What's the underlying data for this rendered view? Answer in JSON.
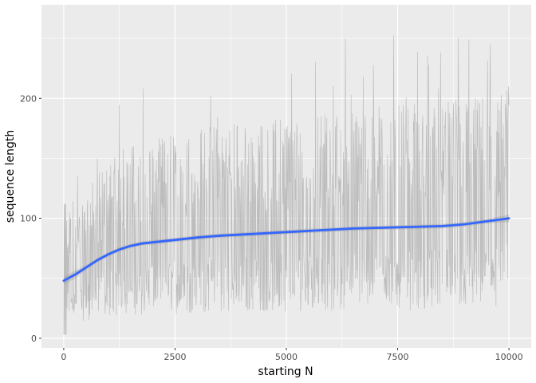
{
  "chart_data": {
    "type": "line",
    "title": "",
    "xlabel": "starting N",
    "ylabel": "sequence length",
    "xlim": [
      -500,
      10500
    ],
    "ylim": [
      -8,
      278
    ],
    "x_ticks": [
      0,
      2500,
      5000,
      7500,
      10000
    ],
    "x_tick_labels": [
      "0",
      "2500",
      "5000",
      "7500",
      "10000"
    ],
    "y_ticks": [
      0,
      100,
      200
    ],
    "y_tick_labels": [
      "0",
      "100",
      "200"
    ],
    "grid": true,
    "legend": "none",
    "series": [
      {
        "kind": "raw",
        "color": "#bdbdbd",
        "x_range": [
          1,
          10000
        ],
        "y_range": [
          1,
          262
        ],
        "note_values": "dense per-N sequence lengths; lower envelope ~20-60, upper envelope ~110-260"
      },
      {
        "kind": "smooth",
        "color": "#3366ff",
        "band_color": "#999999",
        "x": [
          0,
          250,
          500,
          750,
          1000,
          1250,
          1500,
          1750,
          2000,
          2500,
          3000,
          3500,
          4000,
          4500,
          5000,
          5500,
          6000,
          6500,
          7000,
          7500,
          8000,
          8500,
          9000,
          9500,
          10000
        ],
        "y": [
          48,
          53,
          59,
          65,
          70,
          74,
          77,
          79,
          80,
          82,
          84,
          85.5,
          86.5,
          87.5,
          88.5,
          89.5,
          90.5,
          91.5,
          92,
          92.5,
          93,
          93.5,
          95,
          97.5,
          100
        ]
      }
    ]
  }
}
